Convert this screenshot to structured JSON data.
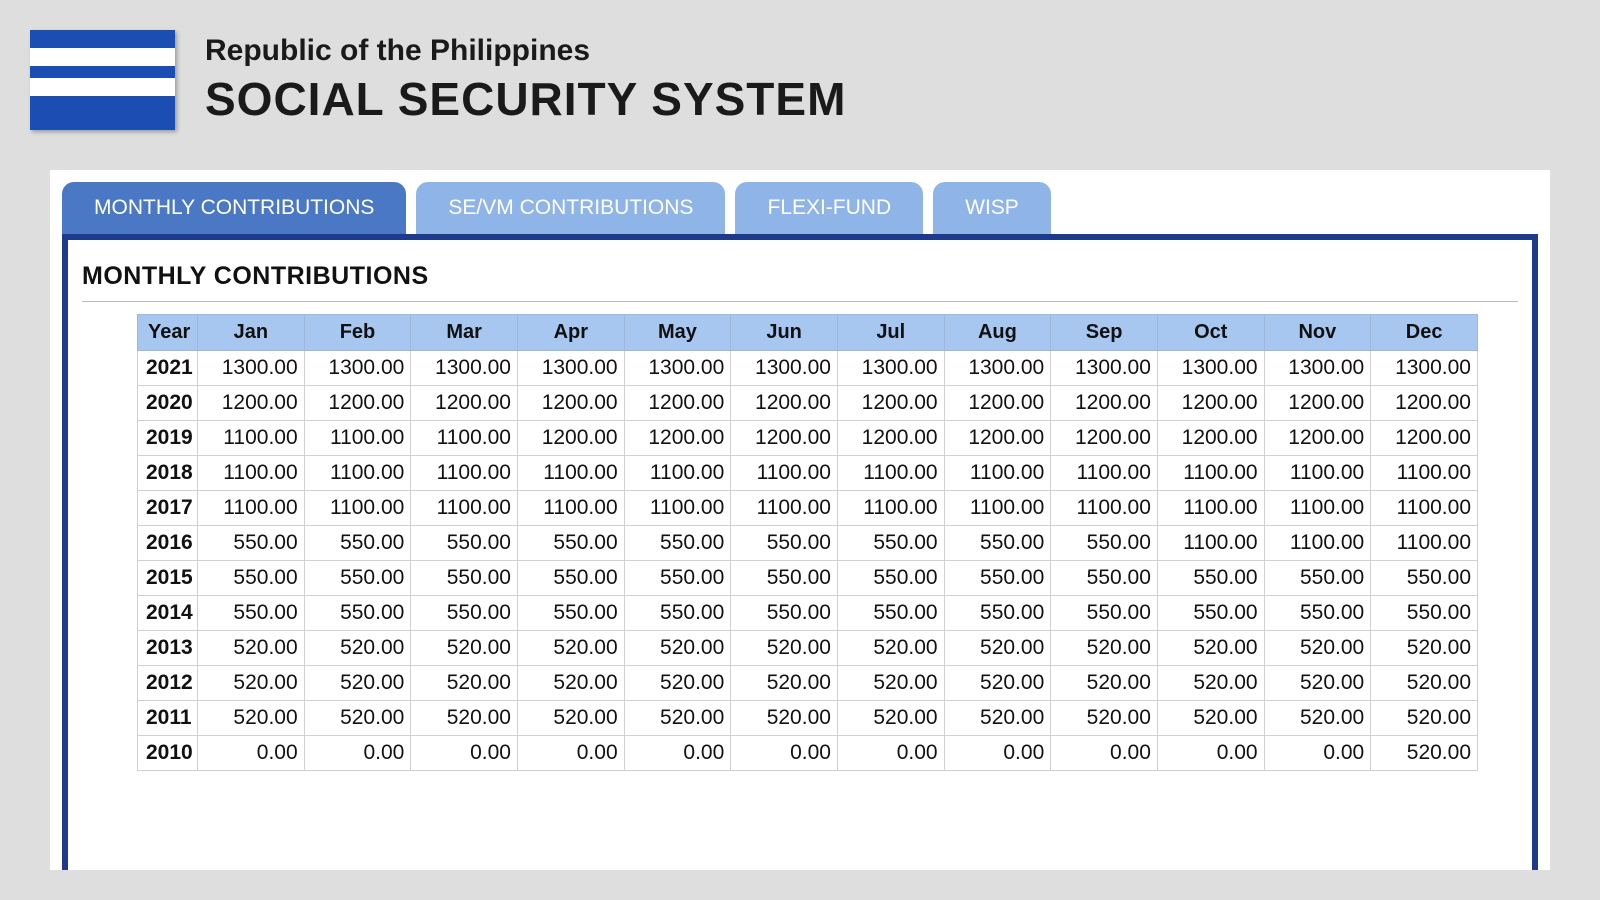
{
  "header": {
    "line1": "Republic of the Philippines",
    "line2": "SOCIAL SECURITY SYSTEM"
  },
  "tabs": [
    {
      "label": "MONTHLY CONTRIBUTIONS",
      "active": true
    },
    {
      "label": "SE/VM CONTRIBUTIONS",
      "active": false
    },
    {
      "label": "FLEXI-FUND",
      "active": false
    },
    {
      "label": "WISP",
      "active": false
    }
  ],
  "section_title": "MONTHLY CONTRIBUTIONS",
  "table": {
    "columns": [
      "Year",
      "Jan",
      "Feb",
      "Mar",
      "Apr",
      "May",
      "Jun",
      "Jul",
      "Aug",
      "Sep",
      "Oct",
      "Nov",
      "Dec"
    ],
    "rows": [
      [
        "2021",
        "1300.00",
        "1300.00",
        "1300.00",
        "1300.00",
        "1300.00",
        "1300.00",
        "1300.00",
        "1300.00",
        "1300.00",
        "1300.00",
        "1300.00",
        "1300.00"
      ],
      [
        "2020",
        "1200.00",
        "1200.00",
        "1200.00",
        "1200.00",
        "1200.00",
        "1200.00",
        "1200.00",
        "1200.00",
        "1200.00",
        "1200.00",
        "1200.00",
        "1200.00"
      ],
      [
        "2019",
        "1100.00",
        "1100.00",
        "1100.00",
        "1200.00",
        "1200.00",
        "1200.00",
        "1200.00",
        "1200.00",
        "1200.00",
        "1200.00",
        "1200.00",
        "1200.00"
      ],
      [
        "2018",
        "1100.00",
        "1100.00",
        "1100.00",
        "1100.00",
        "1100.00",
        "1100.00",
        "1100.00",
        "1100.00",
        "1100.00",
        "1100.00",
        "1100.00",
        "1100.00"
      ],
      [
        "2017",
        "1100.00",
        "1100.00",
        "1100.00",
        "1100.00",
        "1100.00",
        "1100.00",
        "1100.00",
        "1100.00",
        "1100.00",
        "1100.00",
        "1100.00",
        "1100.00"
      ],
      [
        "2016",
        "550.00",
        "550.00",
        "550.00",
        "550.00",
        "550.00",
        "550.00",
        "550.00",
        "550.00",
        "550.00",
        "1100.00",
        "1100.00",
        "1100.00"
      ],
      [
        "2015",
        "550.00",
        "550.00",
        "550.00",
        "550.00",
        "550.00",
        "550.00",
        "550.00",
        "550.00",
        "550.00",
        "550.00",
        "550.00",
        "550.00"
      ],
      [
        "2014",
        "550.00",
        "550.00",
        "550.00",
        "550.00",
        "550.00",
        "550.00",
        "550.00",
        "550.00",
        "550.00",
        "550.00",
        "550.00",
        "550.00"
      ],
      [
        "2013",
        "520.00",
        "520.00",
        "520.00",
        "520.00",
        "520.00",
        "520.00",
        "520.00",
        "520.00",
        "520.00",
        "520.00",
        "520.00",
        "520.00"
      ],
      [
        "2012",
        "520.00",
        "520.00",
        "520.00",
        "520.00",
        "520.00",
        "520.00",
        "520.00",
        "520.00",
        "520.00",
        "520.00",
        "520.00",
        "520.00"
      ],
      [
        "2011",
        "520.00",
        "520.00",
        "520.00",
        "520.00",
        "520.00",
        "520.00",
        "520.00",
        "520.00",
        "520.00",
        "520.00",
        "520.00",
        "520.00"
      ],
      [
        "2010",
        "0.00",
        "0.00",
        "0.00",
        "0.00",
        "0.00",
        "0.00",
        "0.00",
        "0.00",
        "0.00",
        "0.00",
        "0.00",
        "520.00"
      ]
    ],
    "header_bg": "#a7c7f0",
    "border_color": "#d0d0d0"
  },
  "colors": {
    "page_bg": "#dedede",
    "logo_bg": "#1b4db3",
    "tab_active_bg": "#4a78c4",
    "tab_inactive_bg": "#8fb4e8",
    "tab_border": "#1e3a8a"
  }
}
